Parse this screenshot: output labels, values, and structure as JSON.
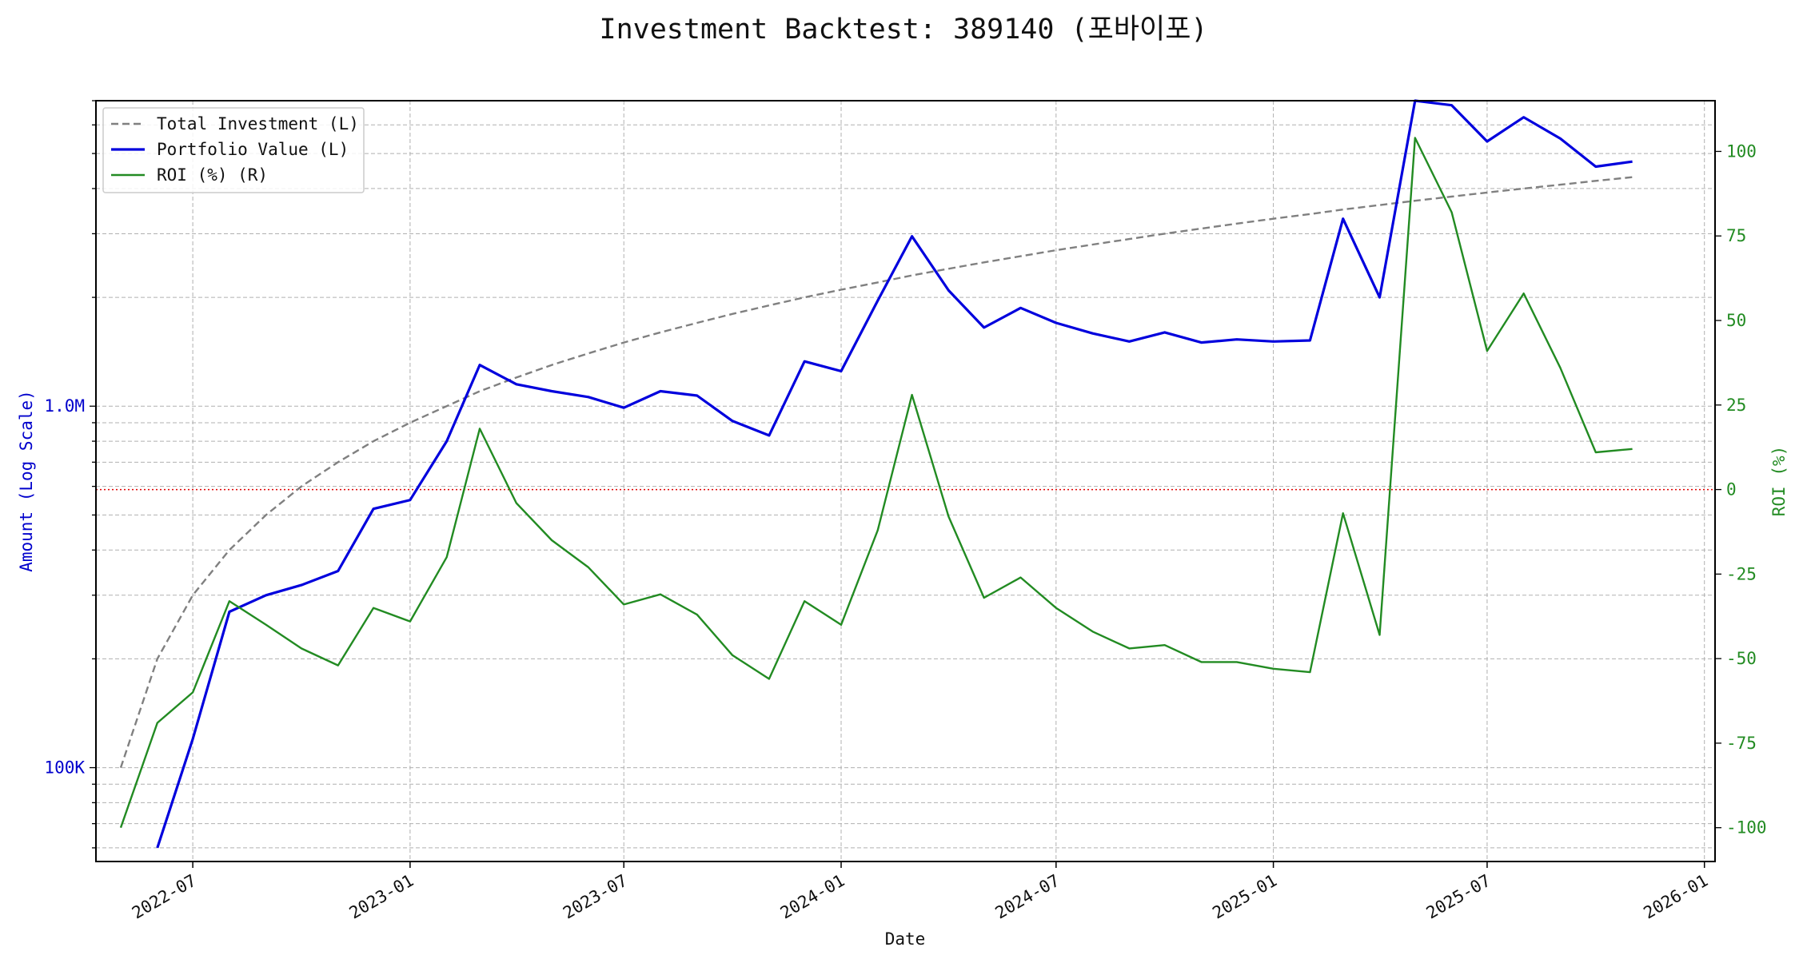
{
  "chart_data": {
    "type": "line",
    "title": "Investment Backtest: 389140 (포바이포)",
    "xlabel": "Date",
    "ylabel_left": "Amount (Log Scale)",
    "ylabel_right": "ROI (%)",
    "left_axis": {
      "scale": "log",
      "ylim": [
        55000,
        7000000
      ],
      "ticks": [
        100000,
        1000000
      ],
      "tick_labels": [
        "100K",
        "1.0M"
      ],
      "color": "#0000cc"
    },
    "right_axis": {
      "scale": "linear",
      "ylim": [
        -110,
        115
      ],
      "ticks": [
        -100,
        -75,
        -50,
        -25,
        0,
        25,
        50,
        75,
        100
      ],
      "tick_labels": [
        "-100",
        "-75",
        "-50",
        "-25",
        "0",
        "25",
        "50",
        "75",
        "100"
      ],
      "color": "#228b22"
    },
    "x_ticks": [
      "2022-07",
      "2023-01",
      "2023-07",
      "2024-01",
      "2024-07",
      "2025-01",
      "2025-07",
      "2026-01"
    ],
    "xlim": [
      "2022-04-10",
      "2026-01-10"
    ],
    "grid": true,
    "legend_position": "top-left",
    "zero_line": {
      "axis": "right",
      "value": 0,
      "color": "#e00000",
      "style": "dotted"
    },
    "x": [
      "2022-05-01",
      "2022-06-01",
      "2022-07-01",
      "2022-08-01",
      "2022-09-01",
      "2022-10-01",
      "2022-11-01",
      "2022-12-01",
      "2023-01-01",
      "2023-02-01",
      "2023-03-01",
      "2023-04-01",
      "2023-05-01",
      "2023-06-01",
      "2023-07-01",
      "2023-08-01",
      "2023-09-01",
      "2023-10-01",
      "2023-11-01",
      "2023-12-01",
      "2024-01-01",
      "2024-02-01",
      "2024-03-01",
      "2024-04-01",
      "2024-05-01",
      "2024-06-01",
      "2024-07-01",
      "2024-08-01",
      "2024-09-01",
      "2024-10-01",
      "2024-11-01",
      "2024-12-01",
      "2025-01-01",
      "2025-02-01",
      "2025-03-01",
      "2025-04-01",
      "2025-05-01",
      "2025-06-01",
      "2025-07-01",
      "2025-08-01",
      "2025-09-01",
      "2025-10-01",
      "2025-11-01"
    ],
    "series": [
      {
        "name": "Total Investment (L)",
        "axis": "left",
        "color": "#808080",
        "style": "dashed",
        "values": [
          100000,
          200000,
          300000,
          400000,
          500000,
          600000,
          700000,
          800000,
          900000,
          1000000,
          1100000,
          1200000,
          1300000,
          1400000,
          1500000,
          1600000,
          1700000,
          1800000,
          1900000,
          2000000,
          2100000,
          2200000,
          2300000,
          2400000,
          2500000,
          2600000,
          2700000,
          2800000,
          2900000,
          3000000,
          3100000,
          3200000,
          3300000,
          3400000,
          3500000,
          3600000,
          3700000,
          3800000,
          3900000,
          4000000,
          4100000,
          4200000,
          4300000
        ]
      },
      {
        "name": "Portfolio Value (L)",
        "axis": "left",
        "color": "#0000dd",
        "style": "solid",
        "values": [
          null,
          60000,
          120000,
          270000,
          300000,
          320000,
          350000,
          520000,
          550000,
          800000,
          1300000,
          1150000,
          1100000,
          1060000,
          990000,
          1100000,
          1070000,
          910000,
          830000,
          1330000,
          1250000,
          1960000,
          2950000,
          2090000,
          1650000,
          1870000,
          1700000,
          1590000,
          1510000,
          1600000,
          1500000,
          1530000,
          1510000,
          1520000,
          3300000,
          2000000,
          7500000,
          6800000,
          5400000,
          6300000,
          5500000,
          4600000,
          4750000
        ]
      },
      {
        "name": "ROI (%) (R)",
        "axis": "right",
        "color": "#228b22",
        "style": "solid",
        "values": [
          -100,
          -69,
          -60,
          -33,
          -40,
          -47,
          -52,
          -35,
          -39,
          -20,
          18,
          -4,
          -15,
          -23,
          -34,
          -31,
          -37,
          -49,
          -56,
          -33,
          -40,
          -12,
          28,
          -8,
          -32,
          -26,
          -35,
          -42,
          -47,
          -46,
          -51,
          -51,
          -53,
          -54,
          -7,
          -43,
          104,
          82,
          41,
          58,
          36,
          11,
          12
        ]
      }
    ]
  }
}
